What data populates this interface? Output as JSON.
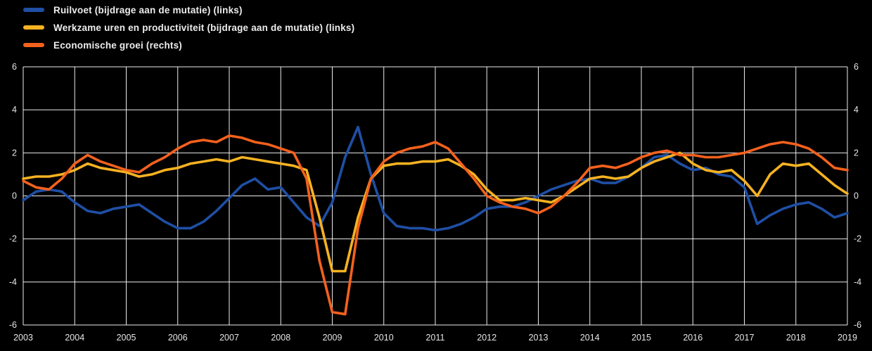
{
  "page": {
    "background_color": "#000000"
  },
  "chart_data": {
    "type": "line",
    "title": "",
    "x_start": 2003,
    "x_end": 2019,
    "x_step": 0.25,
    "x_tick_labels": [
      "2003",
      "2004",
      "2005",
      "2006",
      "2007",
      "2008",
      "2009",
      "2010",
      "2011",
      "2012",
      "2013",
      "2014",
      "2015",
      "2016",
      "2017",
      "2018",
      "2019"
    ],
    "ylim": [
      -6,
      6
    ],
    "y_ticks": [
      6,
      4,
      2,
      0,
      -2,
      -4,
      -6
    ],
    "left_axis_tick_labels": [
      "6",
      "4",
      "2",
      "0",
      "-2",
      "-4",
      "-6"
    ],
    "right_axis_tick_labels": [
      "6",
      "4",
      "2",
      "0",
      "-2",
      "-4",
      "-6"
    ],
    "grid": true,
    "grid_color": "#ffffff",
    "background_color": "#000000",
    "legend_position": "top-left",
    "series": [
      {
        "id": "ruilvoet",
        "name": "Ruilvoet (bijdrage aan de mutatie) (links)",
        "color": "#1f4fa5",
        "axis": "left",
        "values": [
          -0.2,
          0.2,
          0.3,
          0.2,
          -0.3,
          -0.7,
          -0.8,
          -0.6,
          -0.5,
          -0.4,
          -0.8,
          -1.2,
          -1.5,
          -1.5,
          -1.2,
          -0.7,
          -0.1,
          0.5,
          0.8,
          0.3,
          0.4,
          -0.3,
          -1.0,
          -1.4,
          -0.3,
          1.8,
          3.2,
          1.0,
          -0.8,
          -1.4,
          -1.5,
          -1.5,
          -1.6,
          -1.5,
          -1.3,
          -1.0,
          -0.6,
          -0.5,
          -0.5,
          -0.3,
          0.0,
          0.3,
          0.5,
          0.7,
          0.8,
          0.6,
          0.6,
          0.9,
          1.3,
          1.8,
          1.9,
          1.5,
          1.2,
          1.3,
          1.0,
          0.9,
          0.4,
          -1.3,
          -0.9,
          -0.6,
          -0.4,
          -0.3,
          -0.6,
          -1.0,
          -0.8
        ]
      },
      {
        "id": "uren-en-productiviteit",
        "name": "Werkzame uren en productiviteit (bijdrage aan de mutatie) (links)",
        "color": "#f6b221",
        "axis": "left",
        "values": [
          0.8,
          0.9,
          0.9,
          1.0,
          1.2,
          1.5,
          1.3,
          1.2,
          1.1,
          0.9,
          1.0,
          1.2,
          1.3,
          1.5,
          1.6,
          1.7,
          1.6,
          1.8,
          1.7,
          1.6,
          1.5,
          1.4,
          1.2,
          -1.0,
          -3.5,
          -3.5,
          -1.0,
          0.8,
          1.4,
          1.5,
          1.5,
          1.6,
          1.6,
          1.7,
          1.4,
          1.0,
          0.3,
          -0.2,
          -0.2,
          -0.1,
          -0.2,
          -0.3,
          0.0,
          0.4,
          0.8,
          0.9,
          0.8,
          0.9,
          1.3,
          1.6,
          1.8,
          2.0,
          1.5,
          1.2,
          1.1,
          1.2,
          0.7,
          0.0,
          1.0,
          1.5,
          1.4,
          1.5,
          1.0,
          0.5,
          0.1
        ]
      },
      {
        "id": "economische-groei",
        "name": "Economische groei (rechts)",
        "color": "#f4611d",
        "axis": "right",
        "values": [
          0.7,
          0.4,
          0.3,
          0.8,
          1.5,
          1.9,
          1.6,
          1.4,
          1.2,
          1.1,
          1.5,
          1.8,
          2.2,
          2.5,
          2.6,
          2.5,
          2.8,
          2.7,
          2.5,
          2.4,
          2.2,
          2.0,
          0.8,
          -3.0,
          -5.4,
          -5.5,
          -1.5,
          0.8,
          1.6,
          2.0,
          2.2,
          2.3,
          2.5,
          2.2,
          1.5,
          0.8,
          0.0,
          -0.3,
          -0.5,
          -0.6,
          -0.8,
          -0.5,
          0.0,
          0.6,
          1.3,
          1.4,
          1.3,
          1.5,
          1.8,
          2.0,
          2.1,
          1.9,
          1.9,
          1.8,
          1.8,
          1.9,
          2.0,
          2.2,
          2.4,
          2.5,
          2.4,
          2.2,
          1.8,
          1.3,
          1.2
        ]
      }
    ]
  }
}
